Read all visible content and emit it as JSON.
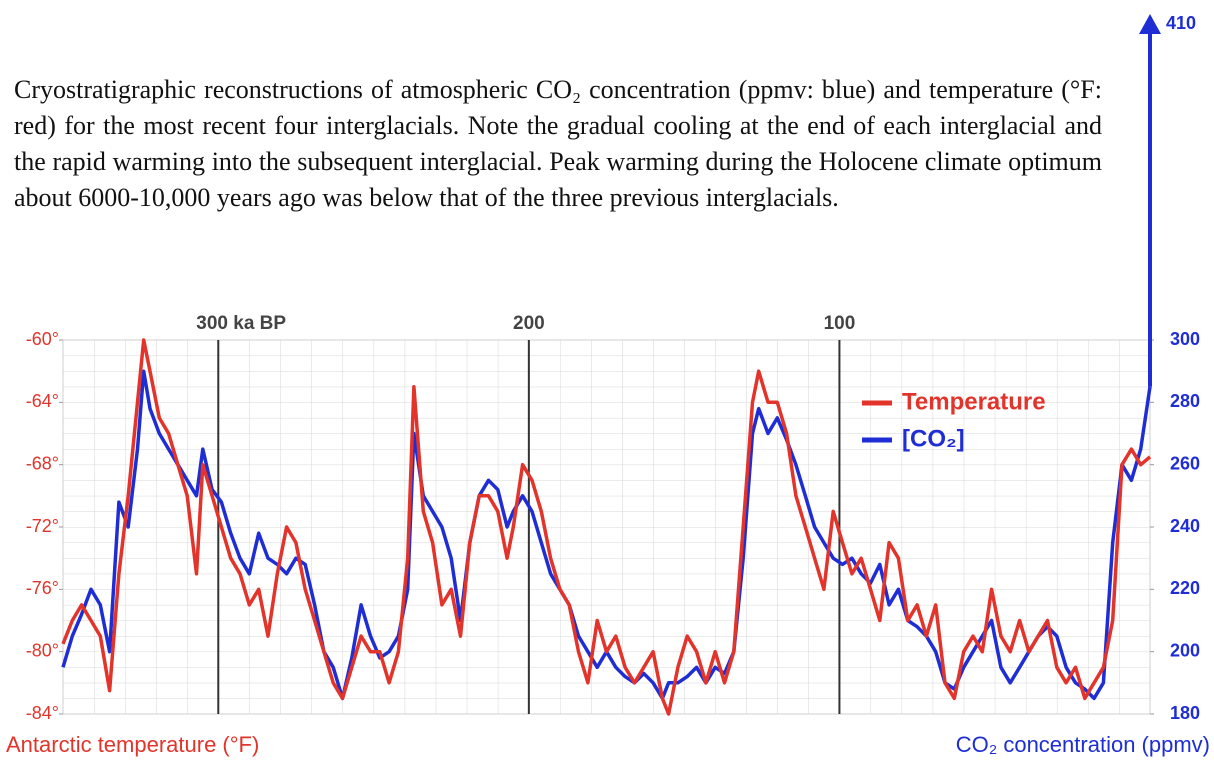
{
  "chart_data": {
    "type": "line",
    "title": "Cryostratigraphic reconstructions of atmospheric CO₂ concentration (ppmv: blue) and temperature (°F: red) for the most recent four interglacials. Note the gradual cooling at the end of each interglacial and the rapid warming into the subsequent interglacial. Peak warming during the Holocene climate optimum about 6000-10,000 years ago was below that of the three previous interglacials.",
    "y_label": "Antarctic temperature (°F)",
    "y2_label": "CO₂ concentration (ppmv)",
    "x": [
      350,
      347,
      344,
      341,
      338,
      335,
      332,
      329,
      326,
      324,
      322,
      319,
      316,
      313,
      310,
      307,
      305,
      302,
      299,
      296,
      293,
      290,
      287,
      284,
      281,
      278,
      275,
      272,
      269,
      266,
      263,
      260,
      257,
      254,
      251,
      248,
      245,
      242,
      239,
      237,
      234,
      231,
      228,
      225,
      222,
      219,
      216,
      213,
      210,
      207,
      205,
      202,
      199,
      196,
      193,
      190,
      187,
      184,
      181,
      178,
      175,
      172,
      169,
      166,
      163,
      160,
      157,
      155,
      152,
      149,
      146,
      143,
      140,
      137,
      134,
      131,
      128,
      126,
      123,
      120,
      117,
      114,
      111,
      108,
      105,
      102,
      99,
      96,
      93,
      90,
      87,
      84,
      81,
      78,
      75,
      72,
      69,
      66,
      63,
      60,
      57,
      54,
      51,
      48,
      45,
      42,
      39,
      36,
      33,
      30,
      27,
      24,
      21,
      18,
      15,
      12,
      9,
      6,
      3,
      0
    ],
    "series": [
      {
        "name": "Temperature",
        "color": "#e2342b",
        "values": [
          -79.5,
          -78,
          -77,
          -78,
          -79,
          -82.5,
          -75,
          -70,
          -64,
          -60,
          -62,
          -65,
          -66,
          -68,
          -70,
          -75,
          -68,
          -70,
          -72,
          -74,
          -75,
          -77,
          -76,
          -79,
          -75,
          -72,
          -73,
          -76,
          -78,
          -80,
          -82,
          -83,
          -81,
          -79,
          -80,
          -80,
          -82,
          -80,
          -74,
          -63,
          -71,
          -73,
          -77,
          -76,
          -79,
          -73,
          -70,
          -70,
          -71,
          -74,
          -72,
          -68,
          -69,
          -71,
          -74,
          -76,
          -77,
          -80,
          -82,
          -78,
          -80,
          -79,
          -81,
          -82,
          -81,
          -80,
          -83,
          -84,
          -81,
          -79,
          -80,
          -82,
          -80,
          -82,
          -80,
          -72,
          -64,
          -62,
          -64,
          -64,
          -66,
          -70,
          -72,
          -74,
          -76,
          -71,
          -73,
          -75,
          -74,
          -76,
          -78,
          -73,
          -74,
          -78,
          -77,
          -79,
          -77,
          -82,
          -83,
          -80,
          -79,
          -80,
          -76,
          -79,
          -80,
          -78,
          -80,
          -79,
          -78,
          -81,
          -82,
          -81,
          -83,
          -82,
          -81,
          -78,
          -68,
          -67,
          -68,
          -67.5
        ]
      },
      {
        "name": "[CO₂]",
        "color": "#1f2ed4",
        "axis": "y2",
        "values": [
          195,
          205,
          212,
          220,
          215,
          200,
          248,
          240,
          265,
          290,
          278,
          270,
          265,
          260,
          255,
          250,
          265,
          252,
          248,
          238,
          230,
          225,
          238,
          230,
          228,
          225,
          230,
          228,
          215,
          200,
          195,
          185,
          198,
          215,
          205,
          198,
          200,
          205,
          220,
          270,
          250,
          245,
          240,
          230,
          210,
          235,
          250,
          255,
          252,
          240,
          245,
          250,
          245,
          235,
          225,
          220,
          215,
          205,
          200,
          195,
          200,
          195,
          192,
          190,
          193,
          190,
          185,
          190,
          190,
          192,
          195,
          190,
          195,
          193,
          200,
          230,
          270,
          278,
          270,
          275,
          268,
          260,
          250,
          240,
          235,
          230,
          228,
          230,
          225,
          222,
          228,
          215,
          220,
          210,
          208,
          205,
          200,
          190,
          188,
          195,
          200,
          205,
          210,
          195,
          190,
          195,
          200,
          205,
          208,
          205,
          195,
          190,
          188,
          185,
          190,
          235,
          260,
          255,
          265,
          285
        ]
      }
    ],
    "xlim": [
      350,
      0
    ],
    "xticks": [
      {
        "value": 300,
        "label": "300 ka BP"
      },
      200,
      100
    ],
    "ylim": [
      -84,
      -60
    ],
    "yticks": [
      {
        "value": -60,
        "label": "-60°"
      },
      {
        "value": -64,
        "label": "-64°"
      },
      {
        "value": -68,
        "label": "-68°"
      },
      {
        "value": -72,
        "label": "-72°"
      },
      {
        "value": -76,
        "label": "-76°"
      },
      {
        "value": -80,
        "label": "-80°"
      },
      {
        "value": -84,
        "label": "-84°"
      }
    ],
    "y2lim": [
      180,
      300
    ],
    "y2ticks": [
      180,
      200,
      220,
      240,
      260,
      280,
      300
    ],
    "co2_arrow": {
      "value": 410,
      "label": "410"
    },
    "grid": true,
    "legend": "upper right"
  }
}
